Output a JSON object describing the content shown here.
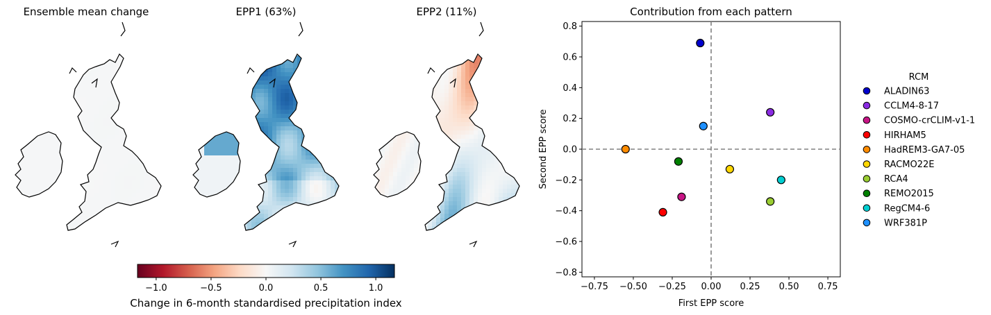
{
  "maps": [
    {
      "title": "Ensemble mean change",
      "pattern": "mean",
      "scale": 0.1
    },
    {
      "title": "EPP1 (63%)",
      "pattern": "epp1",
      "scale": 1.0
    },
    {
      "title": "EPP2 (11%)",
      "pattern": "epp2",
      "scale": 0.8
    }
  ],
  "colorbar": {
    "label": "Change in 6-month standardised precipitation index",
    "ticks": [
      -1.0,
      -0.5,
      0.0,
      0.5,
      1.0
    ],
    "tick_labels": [
      "−1.0",
      "−0.5",
      "0.0",
      "0.5",
      "1.0"
    ],
    "range": [
      -1.17,
      1.17
    ],
    "colormap": "RdBu",
    "colormap_stops": [
      "#67001f",
      "#b2182b",
      "#d6604d",
      "#f4a582",
      "#fddbc7",
      "#f7f7f7",
      "#d1e5f0",
      "#92c5de",
      "#4393c3",
      "#2166ac",
      "#053061"
    ]
  },
  "chart_data": {
    "type": "scatter",
    "title": "Contribution from each pattern",
    "xlabel": "First EPP score",
    "ylabel": "Second EPP score",
    "xlim": [
      -0.83,
      0.83
    ],
    "ylim": [
      -0.83,
      0.83
    ],
    "xticks": [
      -0.75,
      -0.5,
      -0.25,
      0.0,
      0.25,
      0.5,
      0.75
    ],
    "xtick_labels": [
      "−0.75",
      "−0.50",
      "−0.25",
      "0.00",
      "0.25",
      "0.50",
      "0.75"
    ],
    "yticks": [
      -0.8,
      -0.6,
      -0.4,
      -0.2,
      0.0,
      0.2,
      0.4,
      0.6,
      0.8
    ],
    "ytick_labels": [
      "−0.8",
      "−0.6",
      "−0.4",
      "−0.2",
      "0.0",
      "0.2",
      "0.4",
      "0.6",
      "0.8"
    ],
    "grid": false,
    "reference_lines": {
      "x": 0,
      "y": 0,
      "style": "dashed",
      "color": "#808080"
    },
    "legend_title": "RCM",
    "legend_position": "right",
    "points": [
      {
        "name": "ALADIN63",
        "x": -0.07,
        "y": 0.69,
        "color": "#0000cd"
      },
      {
        "name": "CCLM4-8-17",
        "x": 0.38,
        "y": 0.24,
        "color": "#8a2be2"
      },
      {
        "name": "COSMO-crCLIM-v1-1",
        "x": -0.19,
        "y": -0.31,
        "color": "#c71585"
      },
      {
        "name": "HIRHAM5",
        "x": -0.31,
        "y": -0.41,
        "color": "#ff0000"
      },
      {
        "name": "HadREM3-GA7-05",
        "x": -0.55,
        "y": 0.0,
        "color": "#ff8c00"
      },
      {
        "name": "RACMO22E",
        "x": 0.12,
        "y": -0.13,
        "color": "#ffd700"
      },
      {
        "name": "RCA4",
        "x": 0.38,
        "y": -0.34,
        "color": "#9acd32"
      },
      {
        "name": "REMO2015",
        "x": -0.21,
        "y": -0.08,
        "color": "#008000"
      },
      {
        "name": "RegCM4-6",
        "x": 0.45,
        "y": -0.2,
        "color": "#00ced1"
      },
      {
        "name": "WRF381P",
        "x": -0.05,
        "y": 0.15,
        "color": "#1e90ff"
      }
    ]
  }
}
